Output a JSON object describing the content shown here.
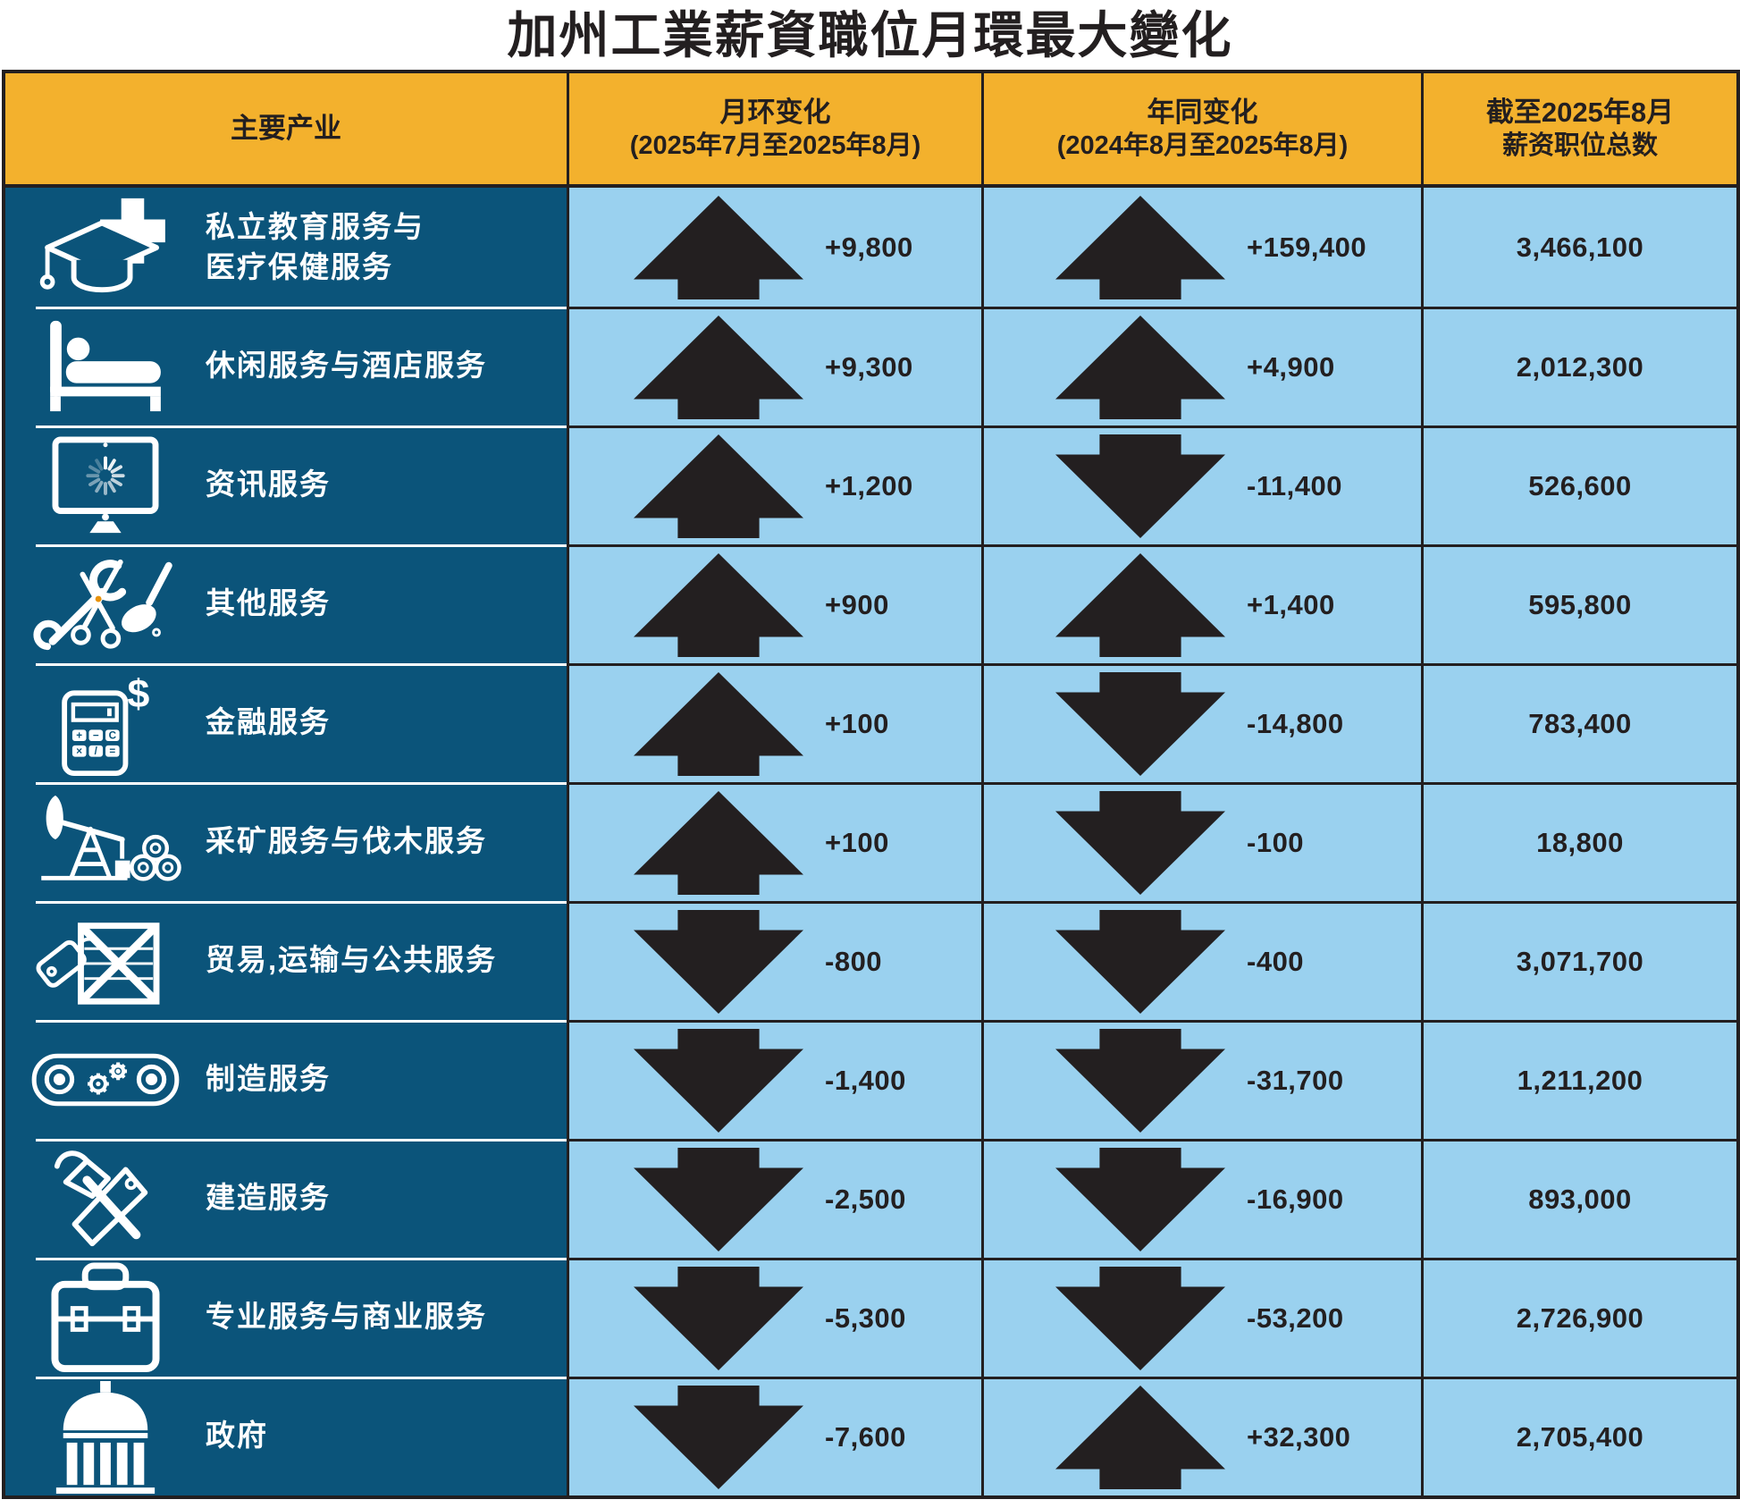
{
  "title": "加州工業薪資職位月環最大變化",
  "colors": {
    "header_bg": "#F3B12D",
    "industry_bg": "#0B547A",
    "cell_bg": "#9AD1EF",
    "arrow": "#231F20"
  },
  "table": {
    "headers": {
      "industry": "主要产业",
      "month_change": [
        "月环变化",
        "(2025年7月至2025年8月)"
      ],
      "year_change": [
        "年同变化",
        "(2024年8月至2025年8月)"
      ],
      "total": [
        "截至2025年8月",
        "薪资职位总数"
      ]
    },
    "rows": [
      {
        "icon": "graduation-cap-medical-cross-icon",
        "industry": "私立教育服务与\n医疗保健服务",
        "month_dir": "up",
        "month_value": "+9,800",
        "year_dir": "up",
        "year_value": "+159,400",
        "total": "3,466,100"
      },
      {
        "icon": "bed-icon",
        "industry": "休闲服务与酒店服务",
        "month_dir": "up",
        "month_value": "+9,300",
        "year_dir": "up",
        "year_value": "+4,900",
        "total": "2,012,300"
      },
      {
        "icon": "monitor-loading-icon",
        "industry": "资讯服务",
        "month_dir": "up",
        "month_value": "+1,200",
        "year_dir": "down",
        "year_value": "-11,400",
        "total": "526,600"
      },
      {
        "icon": "wrench-scissors-duster-icon",
        "industry": "其他服务",
        "month_dir": "up",
        "month_value": "+900",
        "year_dir": "up",
        "year_value": "+1,400",
        "total": "595,800"
      },
      {
        "icon": "calculator-dollar-icon",
        "industry": "金融服务",
        "month_dir": "up",
        "month_value": "+100",
        "year_dir": "down",
        "year_value": "-14,800",
        "total": "783,400"
      },
      {
        "icon": "oil-pump-logs-icon",
        "industry": "采矿服务与伐木服务",
        "month_dir": "up",
        "month_value": "+100",
        "year_dir": "down",
        "year_value": "-100",
        "total": "18,800"
      },
      {
        "icon": "price-tag-crate-icon",
        "industry": "贸易,运输与公共服务",
        "month_dir": "down",
        "month_value": "-800",
        "year_dir": "down",
        "year_value": "-400",
        "total": "3,071,700"
      },
      {
        "icon": "conveyor-gears-icon",
        "industry": "制造服务",
        "month_dir": "down",
        "month_value": "-1,400",
        "year_dir": "down",
        "year_value": "-31,700",
        "total": "1,211,200"
      },
      {
        "icon": "hammer-saw-icon",
        "industry": "建造服务",
        "month_dir": "down",
        "month_value": "-2,500",
        "year_dir": "down",
        "year_value": "-16,900",
        "total": "893,000"
      },
      {
        "icon": "toolbox-icon",
        "industry": "专业服务与商业服务",
        "month_dir": "down",
        "month_value": "-5,300",
        "year_dir": "down",
        "year_value": "-53,200",
        "total": "2,726,900"
      },
      {
        "icon": "government-building-icon",
        "industry": "政府",
        "month_dir": "down",
        "month_value": "-7,600",
        "year_dir": "up",
        "year_value": "+32,300",
        "total": "2,705,400"
      }
    ]
  },
  "chart_data": {
    "type": "table",
    "title": "加州工業薪資職位月環最大變化",
    "columns": [
      "主要产业",
      "月环变化 (2025年7月至2025年8月)",
      "年同变化 (2024年8月至2025年8月)",
      "截至2025年8月 薪资职位总数"
    ],
    "rows": [
      [
        "私立教育服务与医疗保健服务",
        9800,
        159400,
        3466100
      ],
      [
        "休闲服务与酒店服务",
        9300,
        4900,
        2012300
      ],
      [
        "资讯服务",
        1200,
        -11400,
        526600
      ],
      [
        "其他服务",
        900,
        1400,
        595800
      ],
      [
        "金融服务",
        100,
        -14800,
        783400
      ],
      [
        "采矿服务与伐木服务",
        100,
        -100,
        18800
      ],
      [
        "贸易,运输与公共服务",
        -800,
        -400,
        3071700
      ],
      [
        "制造服务",
        -1400,
        -31700,
        1211200
      ],
      [
        "建造服务",
        -2500,
        -16900,
        893000
      ],
      [
        "专业服务与商业服务",
        -5300,
        -53200,
        2726900
      ],
      [
        "政府",
        -7600,
        32300,
        2705400
      ]
    ]
  }
}
